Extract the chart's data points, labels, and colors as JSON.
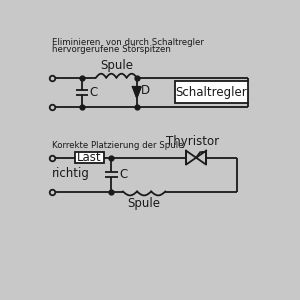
{
  "bg_color": "#c8c8c8",
  "line_color": "#1a1a1a",
  "title1": "Eliminieren  von durch Schaltregler",
  "title1b": "hervorgerufene Störspitzen",
  "title2": "Korrekte Platzierung der Spule",
  "label_spule1": "Spule",
  "label_C1": "C",
  "label_D": "D",
  "label_schaltregler": "Schaltregler",
  "label_last": "Last",
  "label_richtig": "richtig",
  "label_C2": "C",
  "label_thyristor": "Thyristor",
  "label_spule2": "Spule"
}
